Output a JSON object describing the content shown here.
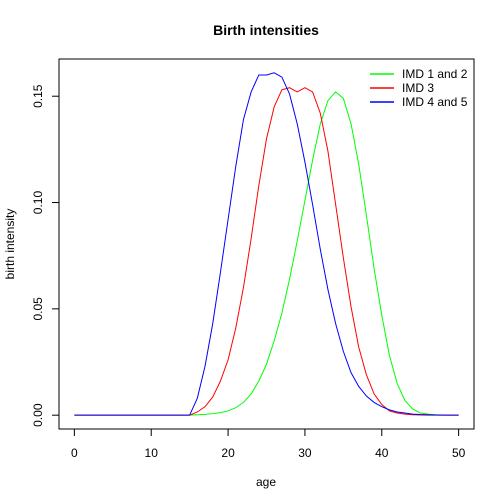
{
  "chart_data": {
    "type": "line",
    "title": "Birth intensities",
    "xlabel": "age",
    "ylabel": "birth intensity",
    "xlim": [
      -2,
      52
    ],
    "ylim": [
      -0.0065,
      0.1675
    ],
    "xticks": [
      0,
      10,
      20,
      30,
      40,
      50
    ],
    "yticks": [
      0.0,
      0.05,
      0.1,
      0.15
    ],
    "ytick_labels": [
      "0.00",
      "0.05",
      "0.10",
      "0.15"
    ],
    "grid": false,
    "legend_position": "top-right",
    "x": [
      0,
      1,
      2,
      3,
      4,
      5,
      6,
      7,
      8,
      9,
      10,
      11,
      12,
      13,
      14,
      15,
      16,
      17,
      18,
      19,
      20,
      21,
      22,
      23,
      24,
      25,
      26,
      27,
      28,
      29,
      30,
      31,
      32,
      33,
      34,
      35,
      36,
      37,
      38,
      39,
      40,
      41,
      42,
      43,
      44,
      45,
      46,
      47,
      48,
      49,
      50
    ],
    "series": [
      {
        "name": "IMD 1 and 2",
        "color": "#00ff00",
        "values": [
          0,
          0,
          0,
          0,
          0,
          0,
          0,
          0,
          0,
          0,
          0,
          0,
          0,
          0,
          0,
          0,
          0.0002,
          0.0004,
          0.0007,
          0.0012,
          0.002,
          0.0035,
          0.006,
          0.01,
          0.016,
          0.024,
          0.035,
          0.048,
          0.064,
          0.082,
          0.101,
          0.12,
          0.137,
          0.148,
          0.152,
          0.149,
          0.137,
          0.118,
          0.094,
          0.069,
          0.047,
          0.028,
          0.015,
          0.007,
          0.003,
          0.001,
          0.0005,
          0.0002,
          0.0001,
          0,
          0
        ]
      },
      {
        "name": "IMD 3",
        "color": "#ff0000",
        "values": [
          0,
          0,
          0,
          0,
          0,
          0,
          0,
          0,
          0,
          0,
          0,
          0,
          0,
          0,
          0,
          0,
          0.0015,
          0.004,
          0.0085,
          0.016,
          0.026,
          0.041,
          0.06,
          0.083,
          0.108,
          0.13,
          0.145,
          0.153,
          0.154,
          0.152,
          0.154,
          0.152,
          0.142,
          0.124,
          0.099,
          0.074,
          0.051,
          0.032,
          0.019,
          0.01,
          0.005,
          0.002,
          0.001,
          0.0005,
          0.0002,
          0.0001,
          0,
          0,
          0,
          0,
          0
        ]
      },
      {
        "name": "IMD 4 and 5",
        "color": "#0000ff",
        "values": [
          0,
          0,
          0,
          0,
          0,
          0,
          0,
          0,
          0,
          0,
          0,
          0,
          0,
          0,
          0,
          0,
          0.008,
          0.023,
          0.043,
          0.067,
          0.092,
          0.117,
          0.139,
          0.152,
          0.16,
          0.16,
          0.161,
          0.159,
          0.151,
          0.137,
          0.119,
          0.099,
          0.078,
          0.059,
          0.043,
          0.03,
          0.02,
          0.0135,
          0.009,
          0.006,
          0.004,
          0.0025,
          0.0015,
          0.001,
          0.0005,
          0.0003,
          0.0002,
          0.0001,
          0,
          0,
          0
        ]
      }
    ]
  }
}
